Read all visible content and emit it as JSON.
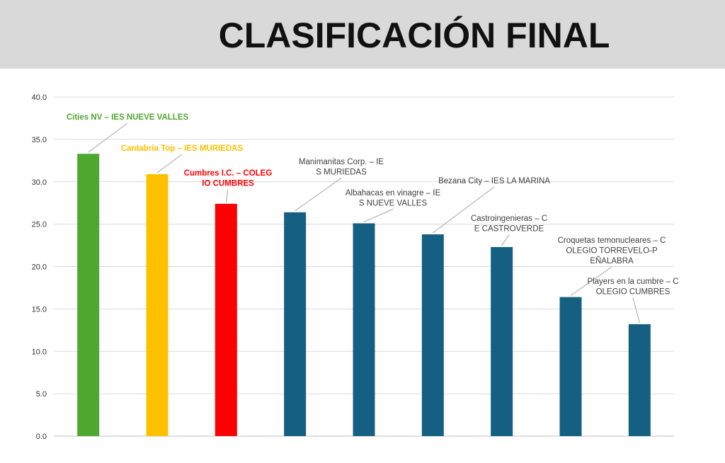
{
  "title": "CLASIFICACIÓN FINAL",
  "chart_data": {
    "type": "bar",
    "categories": [
      "Cities NV – IES NUEVE VALLES",
      "Cantabria Top – IES MURIEDAS",
      "Cumbres I.C. – COLEGIO CUMBRES",
      "Manimanitas Corp. – IES MURIEDAS",
      "Albahacas en vinagre – IES NUEVE VALLES",
      "Bezana City – IES LA MARINA",
      "Castroingenieras – CE CASTROVERDE",
      "Croquetas temonucleares – COLEGIO TORREVELO-PEÑALABRA",
      "Players en la cumbre – COLEGIO CUMBRES"
    ],
    "values": [
      33.3,
      30.9,
      27.4,
      26.4,
      25.1,
      23.8,
      22.3,
      16.4,
      13.2
    ],
    "colors": [
      "#4ea72e",
      "#ffc000",
      "#ff0000",
      "#156082",
      "#156082",
      "#156082",
      "#156082",
      "#156082",
      "#156082"
    ],
    "label_colors": [
      "#4ea72e",
      "#ffc000",
      "#ff0000",
      "#404040",
      "#404040",
      "#404040",
      "#404040",
      "#404040",
      "#404040"
    ],
    "label_bold": [
      true,
      true,
      true,
      false,
      false,
      false,
      false,
      false,
      false
    ],
    "ylim": [
      0,
      40
    ],
    "yticks": [
      "0.0",
      "5.0",
      "10.0",
      "15.0",
      "20.0",
      "25.0",
      "30.0",
      "35.0",
      "40.0"
    ],
    "grid": true,
    "xlabel": "",
    "ylabel": ""
  }
}
